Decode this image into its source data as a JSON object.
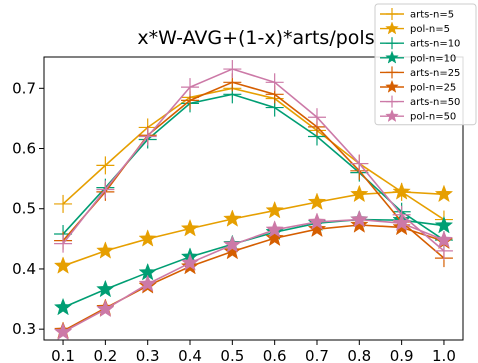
{
  "chart_data": {
    "type": "line",
    "title": "x*W-AVG+(1-x)*arts/pols",
    "x": [
      0.1,
      0.2,
      0.3,
      0.4,
      0.5,
      0.6,
      0.7,
      0.8,
      0.9,
      1.0
    ],
    "x_tick_labels": [
      "0.1",
      "0.2",
      "0.3",
      "0.4",
      "0.5",
      "0.6",
      "0.7",
      "0.8",
      "0.9",
      "1.0"
    ],
    "xlim": [
      0.055,
      1.045
    ],
    "ylim": [
      0.282,
      0.752
    ],
    "y_ticks": [
      0.3,
      0.4,
      0.5,
      0.6,
      0.7
    ],
    "y_tick_labels": [
      "0.3",
      "0.4",
      "0.5",
      "0.6",
      "0.7"
    ],
    "legend_position": "top-right",
    "grid": false,
    "series": [
      {
        "name": "arts-n=5",
        "marker": "plus",
        "color": "#E69F00",
        "values": [
          0.508,
          0.572,
          0.635,
          0.685,
          0.7,
          0.683,
          0.63,
          0.575,
          0.528,
          0.482
        ]
      },
      {
        "name": "pol-n=5",
        "marker": "star",
        "color": "#E69F00",
        "values": [
          0.405,
          0.43,
          0.45,
          0.467,
          0.483,
          0.497,
          0.511,
          0.524,
          0.528,
          0.524
        ]
      },
      {
        "name": "arts-n=10",
        "marker": "plus",
        "color": "#009E73",
        "values": [
          0.458,
          0.535,
          0.615,
          0.675,
          0.69,
          0.668,
          0.62,
          0.56,
          0.495,
          0.448
        ]
      },
      {
        "name": "pol-n=10",
        "marker": "star",
        "color": "#009E73",
        "values": [
          0.336,
          0.366,
          0.394,
          0.42,
          0.441,
          0.461,
          0.476,
          0.482,
          0.481,
          0.472
        ]
      },
      {
        "name": "arts-n=25",
        "marker": "plus",
        "color": "#D55E00",
        "values": [
          0.447,
          0.528,
          0.622,
          0.68,
          0.71,
          0.69,
          0.636,
          0.563,
          0.478,
          0.418
        ]
      },
      {
        "name": "pol-n=25",
        "marker": "star",
        "color": "#D55E00",
        "values": [
          0.297,
          0.335,
          0.372,
          0.404,
          0.429,
          0.451,
          0.466,
          0.473,
          0.469,
          0.446
        ]
      },
      {
        "name": "arts-n=50",
        "marker": "plus",
        "color": "#CC79A7",
        "values": [
          0.442,
          0.532,
          0.62,
          0.702,
          0.732,
          0.71,
          0.652,
          0.575,
          0.49,
          0.43
        ]
      },
      {
        "name": "pol-n=50",
        "marker": "star",
        "color": "#CC79A7",
        "values": [
          0.295,
          0.333,
          0.375,
          0.41,
          0.44,
          0.465,
          0.478,
          0.482,
          0.476,
          0.448
        ]
      }
    ]
  }
}
